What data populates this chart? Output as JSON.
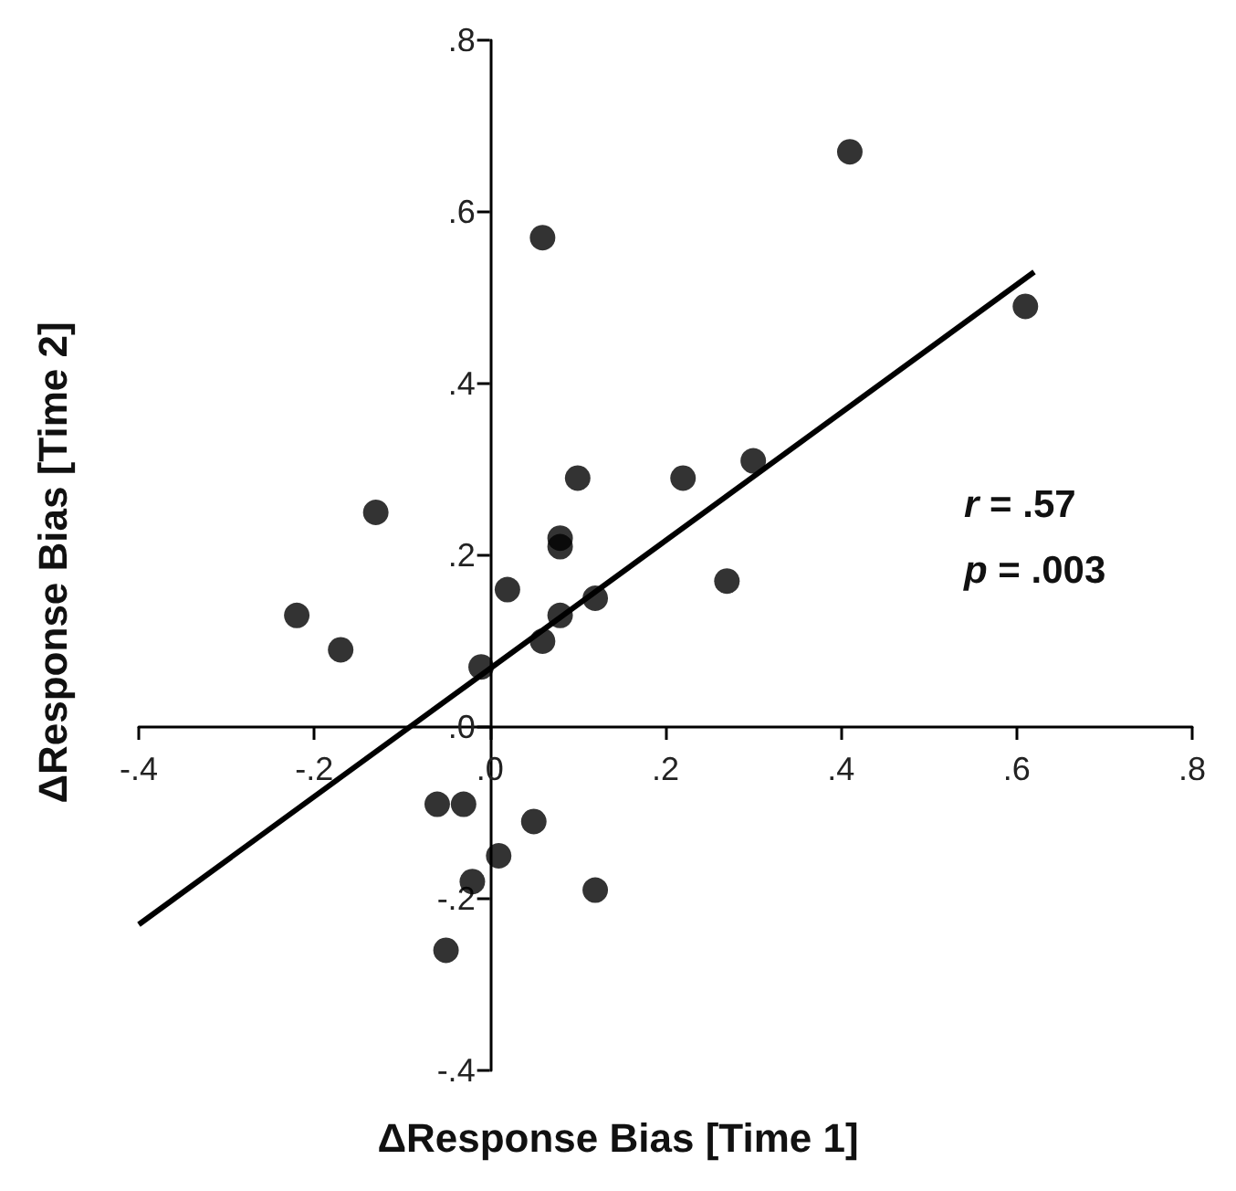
{
  "chart_data": {
    "type": "scatter",
    "xlabel": "ΔResponse Bias [Time 1]",
    "ylabel": "ΔResponse Bias [Time 2]",
    "xlim": [
      -0.4,
      0.8
    ],
    "ylim": [
      -0.4,
      0.8
    ],
    "xticks": [
      {
        "value": -0.4,
        "label": "-.4"
      },
      {
        "value": -0.2,
        "label": "-.2"
      },
      {
        "value": 0,
        "label": ".0"
      },
      {
        "value": 0.2,
        "label": ".2"
      },
      {
        "value": 0.4,
        "label": ".4"
      },
      {
        "value": 0.6,
        "label": ".6"
      },
      {
        "value": 0.8,
        "label": ".8"
      }
    ],
    "yticks": [
      {
        "value": -0.4,
        "label": "-.4"
      },
      {
        "value": -0.2,
        "label": "-.2"
      },
      {
        "value": 0,
        "label": ".0"
      },
      {
        "value": 0.2,
        "label": ".2"
      },
      {
        "value": 0.4,
        "label": ".4"
      },
      {
        "value": 0.6,
        "label": ".6"
      },
      {
        "value": 0.8,
        "label": ".8"
      }
    ],
    "grid": false,
    "series": [
      {
        "color": "#000000",
        "marker": "circle",
        "x": [
          -0.22,
          -0.17,
          -0.13,
          0.06,
          0.41,
          0.61,
          0.3,
          0.22,
          0.27,
          0.1,
          0.08,
          0.08,
          0.02,
          0.12,
          0.08,
          0.06,
          -0.01,
          -0.06,
          -0.03,
          0.05,
          0.01,
          -0.02,
          0.12,
          -0.05
        ],
        "values": [
          0.13,
          0.09,
          0.25,
          0.57,
          0.67,
          0.49,
          0.31,
          0.29,
          0.17,
          0.29,
          0.22,
          0.21,
          0.16,
          0.15,
          0.13,
          0.1,
          0.07,
          -0.09,
          -0.09,
          -0.11,
          -0.15,
          -0.18,
          -0.19,
          -0.26
        ]
      },
      {
        "type": "line",
        "color": "#000000",
        "marker": "none",
        "line_style": "solid",
        "x": [
          -0.4,
          0.62
        ],
        "values": [
          -0.23,
          0.53
        ]
      }
    ],
    "annotations": [
      "r = .57",
      "p = .003"
    ]
  }
}
